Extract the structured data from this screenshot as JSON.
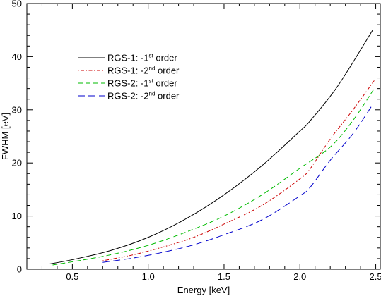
{
  "chart_data": {
    "type": "line",
    "xlabel": "Energy [keV]",
    "ylabel": "FWHM [eV]",
    "xlim": [
      0.2,
      2.53
    ],
    "ylim": [
      0,
      50
    ],
    "xticks_major": [
      0.5,
      1.0,
      1.5,
      2.0,
      2.5
    ],
    "xtick_labels": [
      "0.5",
      "1.0",
      "1.5",
      "2.0",
      "2.5"
    ],
    "yticks_major": [
      0,
      10,
      20,
      30,
      40,
      50
    ],
    "ytick_labels": [
      "0",
      "10",
      "20",
      "30",
      "40",
      "50"
    ],
    "grid": false,
    "legend_position": "top-left",
    "series": [
      {
        "name": "RGS-1: -1st order",
        "name_parts": [
          "RGS-1: -1",
          "st",
          " order"
        ],
        "color": "#000000",
        "dash": "solid",
        "x": [
          0.35,
          0.5,
          0.75,
          1.0,
          1.25,
          1.5,
          1.75,
          2.0,
          2.07,
          2.25,
          2.48
        ],
        "y": [
          1.0,
          1.8,
          3.5,
          6.0,
          9.5,
          14.0,
          19.5,
          26.0,
          28.0,
          34.5,
          45.0
        ]
      },
      {
        "name": "RGS-1: -2nd order",
        "name_parts": [
          "RGS-1: -2",
          "nd",
          " order"
        ],
        "color": "#cc0000",
        "dash": "dotdash",
        "x": [
          0.7,
          0.9,
          1.1,
          1.3,
          1.5,
          1.75,
          2.0,
          2.07,
          2.2,
          2.35,
          2.49
        ],
        "y": [
          1.6,
          2.7,
          4.2,
          6.0,
          8.5,
          12.0,
          17.0,
          19.0,
          24.5,
          30.0,
          35.5
        ]
      },
      {
        "name": "RGS-2: -1st order",
        "name_parts": [
          "RGS-2: -1",
          "st",
          " order"
        ],
        "color": "#00bb00",
        "dash": "dashed",
        "x": [
          0.37,
          0.5,
          0.75,
          1.0,
          1.25,
          1.5,
          1.75,
          2.0,
          2.2,
          2.35,
          2.49
        ],
        "y": [
          0.8,
          1.4,
          2.7,
          4.5,
          7.0,
          10.0,
          14.0,
          19.0,
          23.0,
          28.0,
          34.0
        ]
      },
      {
        "name": "RGS-2: -2nd order",
        "name_parts": [
          "RGS-2: -2",
          "nd",
          " order"
        ],
        "color": "#0000cc",
        "dash": "longdash",
        "x": [
          0.7,
          0.9,
          1.1,
          1.3,
          1.5,
          1.75,
          2.0,
          2.07,
          2.2,
          2.35,
          2.48
        ],
        "y": [
          1.3,
          2.1,
          3.2,
          4.6,
          6.5,
          9.3,
          13.8,
          15.5,
          20.5,
          25.5,
          31.0
        ]
      }
    ]
  }
}
